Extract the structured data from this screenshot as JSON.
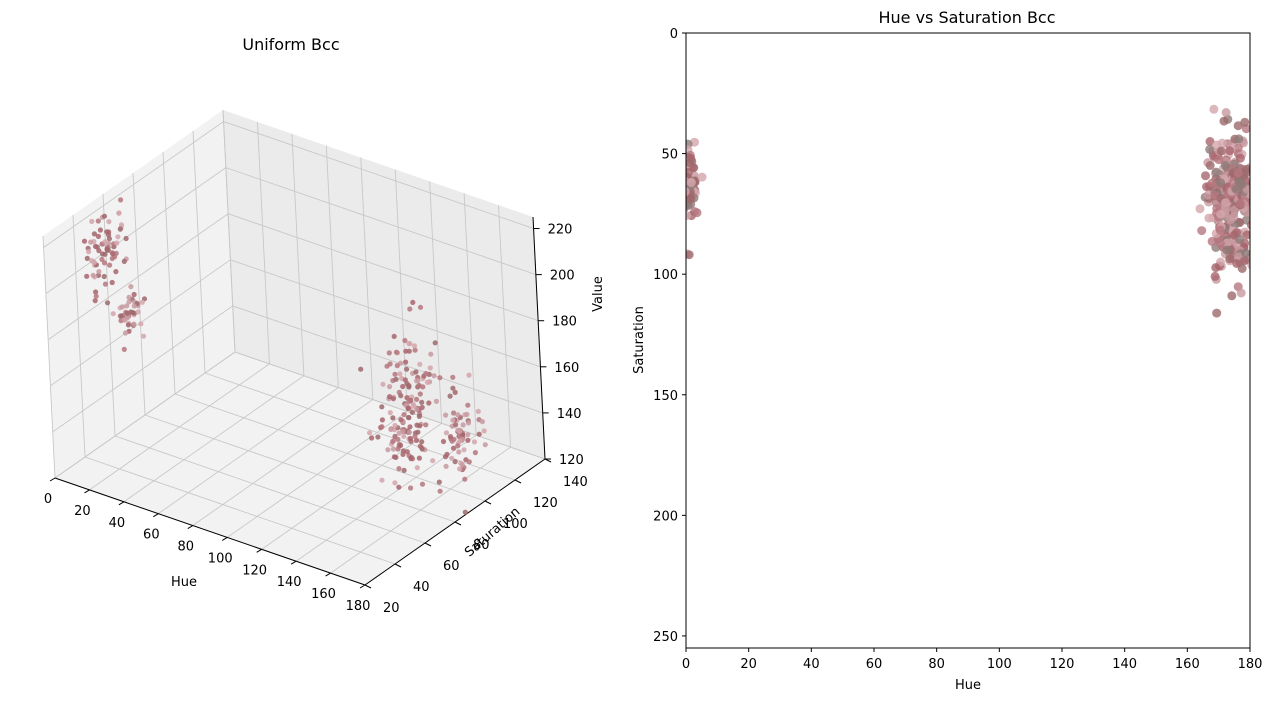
{
  "chart_data": [
    {
      "type": "scatter",
      "projection": "3d",
      "title": "Uniform Bcc",
      "xlabel": "Hue",
      "ylabel": "Saturation",
      "zlabel": "Value",
      "xlim": [
        0,
        180
      ],
      "ylim": [
        20,
        140
      ],
      "zlim": [
        120,
        225
      ],
      "xticks": [
        "0",
        "20",
        "40",
        "60",
        "80",
        "100",
        "120",
        "140",
        "160",
        "180"
      ],
      "yticks": [
        "20",
        "40",
        "60",
        "80",
        "100",
        "120",
        "140"
      ],
      "zticks": [
        "120",
        "140",
        "160",
        "180",
        "200",
        "220"
      ],
      "grid": true,
      "colors": [
        "#c79aa0",
        "#b5787f",
        "#9d6a6c",
        "#d3a6ad",
        "#a8656d"
      ],
      "clusters": [
        {
          "hue": 2,
          "saturation": 57,
          "value": 202,
          "spread_hue": 3,
          "spread_saturation": 6,
          "spread_value": 8,
          "count": 70
        },
        {
          "hue": 2,
          "saturation": 72,
          "value": 168,
          "spread_hue": 2,
          "spread_saturation": 4,
          "spread_value": 6,
          "count": 40
        },
        {
          "hue": 172,
          "saturation": 60,
          "value": 175,
          "spread_hue": 4,
          "spread_saturation": 8,
          "spread_value": 14,
          "count": 160
        },
        {
          "hue": 174,
          "saturation": 92,
          "value": 150,
          "spread_hue": 3,
          "spread_saturation": 6,
          "spread_value": 10,
          "count": 70
        }
      ]
    },
    {
      "type": "scatter",
      "title": "Hue vs Saturation Bcc",
      "xlabel": "Hue",
      "ylabel": "Saturation",
      "xlim": [
        0,
        180
      ],
      "ylim": [
        255,
        0
      ],
      "xticks": [
        0,
        20,
        40,
        60,
        80,
        100,
        120,
        140,
        160,
        180
      ],
      "yticks": [
        0,
        50,
        100,
        150,
        200,
        250
      ],
      "grid": false,
      "colors": [
        "#c79aa0",
        "#b5787f",
        "#9d6a6c",
        "#d3a6ad",
        "#a8656d",
        "#8f7a78"
      ],
      "clusters": [
        {
          "hue": 1,
          "saturation": 62,
          "spread_hue": 1.5,
          "spread_saturation": 8,
          "count": 60
        },
        {
          "hue": 0.5,
          "saturation": 91,
          "spread_hue": 0.3,
          "spread_saturation": 0.5,
          "count": 2
        },
        {
          "hue": 173,
          "saturation": 62,
          "spread_hue": 4,
          "spread_saturation": 9,
          "count": 180
        },
        {
          "hue": 174,
          "saturation": 88,
          "spread_hue": 3,
          "spread_saturation": 8,
          "count": 90
        },
        {
          "hue": 178,
          "saturation": 65,
          "spread_hue": 2,
          "spread_saturation": 5,
          "count": 40
        }
      ]
    }
  ]
}
